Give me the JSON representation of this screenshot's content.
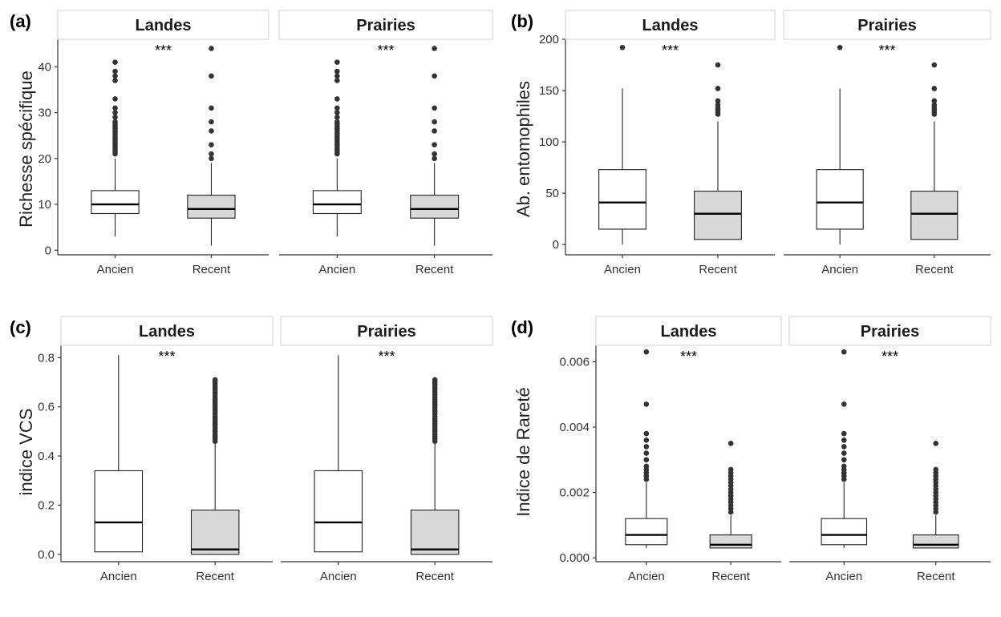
{
  "figure": {
    "categories": [
      "Ancien",
      "Recent"
    ],
    "facets": [
      "Landes",
      "Prairies"
    ],
    "box_colors": {
      "Ancien": "#ffffff",
      "Recent": "#d9d9d9"
    },
    "strip_fill": "#ffffff",
    "strip_border": "#d9d9d9",
    "significance": "***"
  },
  "chart_data": [
    {
      "type": "box",
      "panel_label": "(a)",
      "ylabel": "Richesse spécifique",
      "ylim": [
        -1,
        46
      ],
      "yticks": [
        0,
        10,
        20,
        30,
        40
      ],
      "ytick_labels": [
        "0",
        "10",
        "20",
        "30",
        "40"
      ],
      "facets": [
        {
          "name": "Landes",
          "significance": "***",
          "boxes": [
            {
              "category": "Ancien",
              "min": 3,
              "q1": 8,
              "median": 10,
              "q3": 13,
              "max": 20,
              "outliers": [
                21,
                21.5,
                22,
                22.5,
                23,
                23.5,
                24,
                24.5,
                25,
                25.5,
                26,
                26.5,
                27,
                27.5,
                28,
                29,
                30,
                31,
                33,
                37,
                38,
                39,
                41
              ]
            },
            {
              "category": "Recent",
              "min": 1,
              "q1": 7,
              "median": 9,
              "q3": 12,
              "max": 19,
              "outliers": [
                20,
                21,
                23,
                26,
                28,
                31,
                38,
                44
              ]
            }
          ]
        },
        {
          "name": "Prairies",
          "significance": "***",
          "boxes": [
            {
              "category": "Ancien",
              "min": 3,
              "q1": 8,
              "median": 10,
              "q3": 13,
              "max": 20,
              "outliers": [
                21,
                21.5,
                22,
                22.5,
                23,
                23.5,
                24,
                24.5,
                25,
                25.5,
                26,
                26.5,
                27,
                27.5,
                28,
                29,
                30,
                31,
                33,
                37,
                38,
                39,
                41
              ]
            },
            {
              "category": "Recent",
              "min": 1,
              "q1": 7,
              "median": 9,
              "q3": 12,
              "max": 19,
              "outliers": [
                20,
                21,
                23,
                26,
                28,
                31,
                38,
                44
              ]
            }
          ]
        }
      ]
    },
    {
      "type": "box",
      "panel_label": "(b)",
      "ylabel": "Ab. entomophiles",
      "ylim": [
        -10,
        200
      ],
      "yticks": [
        0,
        50,
        100,
        150,
        200
      ],
      "ytick_labels": [
        "0",
        "50",
        "100",
        "150",
        "200"
      ],
      "facets": [
        {
          "name": "Landes",
          "significance": "***",
          "boxes": [
            {
              "category": "Ancien",
              "min": 0,
              "q1": 15,
              "median": 41,
              "q3": 73,
              "max": 152,
              "outliers": [
                192
              ]
            },
            {
              "category": "Recent",
              "min": 5,
              "q1": 5,
              "median": 30,
              "q3": 52,
              "max": 120,
              "outliers": [
                127,
                129,
                131,
                133,
                136,
                140,
                152,
                175
              ]
            }
          ]
        },
        {
          "name": "Prairies",
          "significance": "***",
          "boxes": [
            {
              "category": "Ancien",
              "min": 0,
              "q1": 15,
              "median": 41,
              "q3": 73,
              "max": 152,
              "outliers": [
                192
              ]
            },
            {
              "category": "Recent",
              "min": 5,
              "q1": 5,
              "median": 30,
              "q3": 52,
              "max": 120,
              "outliers": [
                127,
                129,
                131,
                133,
                136,
                140,
                152,
                175
              ]
            }
          ]
        }
      ]
    },
    {
      "type": "box",
      "panel_label": "(c)",
      "ylabel": "indice VCS",
      "ylim": [
        -0.03,
        0.85
      ],
      "yticks": [
        0.0,
        0.2,
        0.4,
        0.6,
        0.8
      ],
      "ytick_labels": [
        "0.0",
        "0.2",
        "0.4",
        "0.6",
        "0.8"
      ],
      "facets": [
        {
          "name": "Landes",
          "significance": "***",
          "boxes": [
            {
              "category": "Ancien",
              "min": 0.01,
              "q1": 0.01,
              "median": 0.13,
              "q3": 0.34,
              "max": 0.81,
              "outliers": []
            },
            {
              "category": "Recent",
              "min": 0.0,
              "q1": 0.0,
              "median": 0.02,
              "q3": 0.18,
              "max": 0.45,
              "outliers": [
                0.46,
                0.47,
                0.48,
                0.49,
                0.5,
                0.51,
                0.52,
                0.53,
                0.54,
                0.55,
                0.56,
                0.57,
                0.58,
                0.59,
                0.6,
                0.61,
                0.62,
                0.63,
                0.64,
                0.65,
                0.66,
                0.67,
                0.68,
                0.69,
                0.7,
                0.71
              ]
            }
          ]
        },
        {
          "name": "Prairies",
          "significance": "***",
          "boxes": [
            {
              "category": "Ancien",
              "min": 0.01,
              "q1": 0.01,
              "median": 0.13,
              "q3": 0.34,
              "max": 0.81,
              "outliers": []
            },
            {
              "category": "Recent",
              "min": 0.0,
              "q1": 0.0,
              "median": 0.02,
              "q3": 0.18,
              "max": 0.45,
              "outliers": [
                0.46,
                0.47,
                0.48,
                0.49,
                0.5,
                0.51,
                0.52,
                0.53,
                0.54,
                0.55,
                0.56,
                0.57,
                0.58,
                0.59,
                0.6,
                0.61,
                0.62,
                0.63,
                0.64,
                0.65,
                0.66,
                0.67,
                0.68,
                0.69,
                0.7,
                0.71
              ]
            }
          ]
        }
      ]
    },
    {
      "type": "box",
      "panel_label": "(d)",
      "ylabel": "Indice de Rareté",
      "ylim": [
        -0.00012,
        0.0065
      ],
      "yticks": [
        0.0,
        0.002,
        0.004,
        0.006
      ],
      "ytick_labels": [
        "0.000",
        "0.002",
        "0.004",
        "0.006"
      ],
      "facets": [
        {
          "name": "Landes",
          "significance": "***",
          "boxes": [
            {
              "category": "Ancien",
              "min": 0.0003,
              "q1": 0.0004,
              "median": 0.0007,
              "q3": 0.0012,
              "max": 0.0023,
              "outliers": [
                0.0024,
                0.0025,
                0.0026,
                0.0027,
                0.0028,
                0.003,
                0.0032,
                0.0034,
                0.0036,
                0.0038,
                0.0047,
                0.0063
              ]
            },
            {
              "category": "Recent",
              "min": 0.0003,
              "q1": 0.0003,
              "median": 0.0004,
              "q3": 0.0007,
              "max": 0.0013,
              "outliers": [
                0.0014,
                0.0015,
                0.0016,
                0.0017,
                0.0018,
                0.0019,
                0.002,
                0.0021,
                0.0022,
                0.0023,
                0.0024,
                0.0025,
                0.0026,
                0.0027,
                0.0035
              ]
            }
          ]
        },
        {
          "name": "Prairies",
          "significance": "***",
          "boxes": [
            {
              "category": "Ancien",
              "min": 0.0003,
              "q1": 0.0004,
              "median": 0.0007,
              "q3": 0.0012,
              "max": 0.0023,
              "outliers": [
                0.0024,
                0.0025,
                0.0026,
                0.0027,
                0.0028,
                0.003,
                0.0032,
                0.0034,
                0.0036,
                0.0038,
                0.0047,
                0.0063
              ]
            },
            {
              "category": "Recent",
              "min": 0.0003,
              "q1": 0.0003,
              "median": 0.0004,
              "q3": 0.0007,
              "max": 0.0013,
              "outliers": [
                0.0014,
                0.0015,
                0.0016,
                0.0017,
                0.0018,
                0.0019,
                0.002,
                0.0021,
                0.0022,
                0.0023,
                0.0024,
                0.0025,
                0.0026,
                0.0027,
                0.0035
              ]
            }
          ]
        }
      ]
    }
  ]
}
